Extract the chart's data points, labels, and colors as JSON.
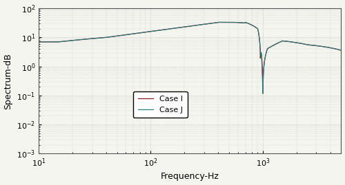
{
  "xlabel": "Frequency-Hz",
  "ylabel": "Spectrum-dB",
  "background_color": "#f5f5f0",
  "grid_color": "#b0b0b0",
  "case_J_color": "#317a7a",
  "case_I_color": "#8b1a1a",
  "legend_labels": [
    "Case J",
    "Case I"
  ],
  "xlim": [
    10,
    5000
  ],
  "ylim_low": 0.001,
  "ylim_high": 100,
  "yticks": [
    0.001,
    0.01,
    0.1,
    1.0,
    10.0,
    100.0
  ],
  "xticks": [
    10,
    100,
    1000
  ]
}
